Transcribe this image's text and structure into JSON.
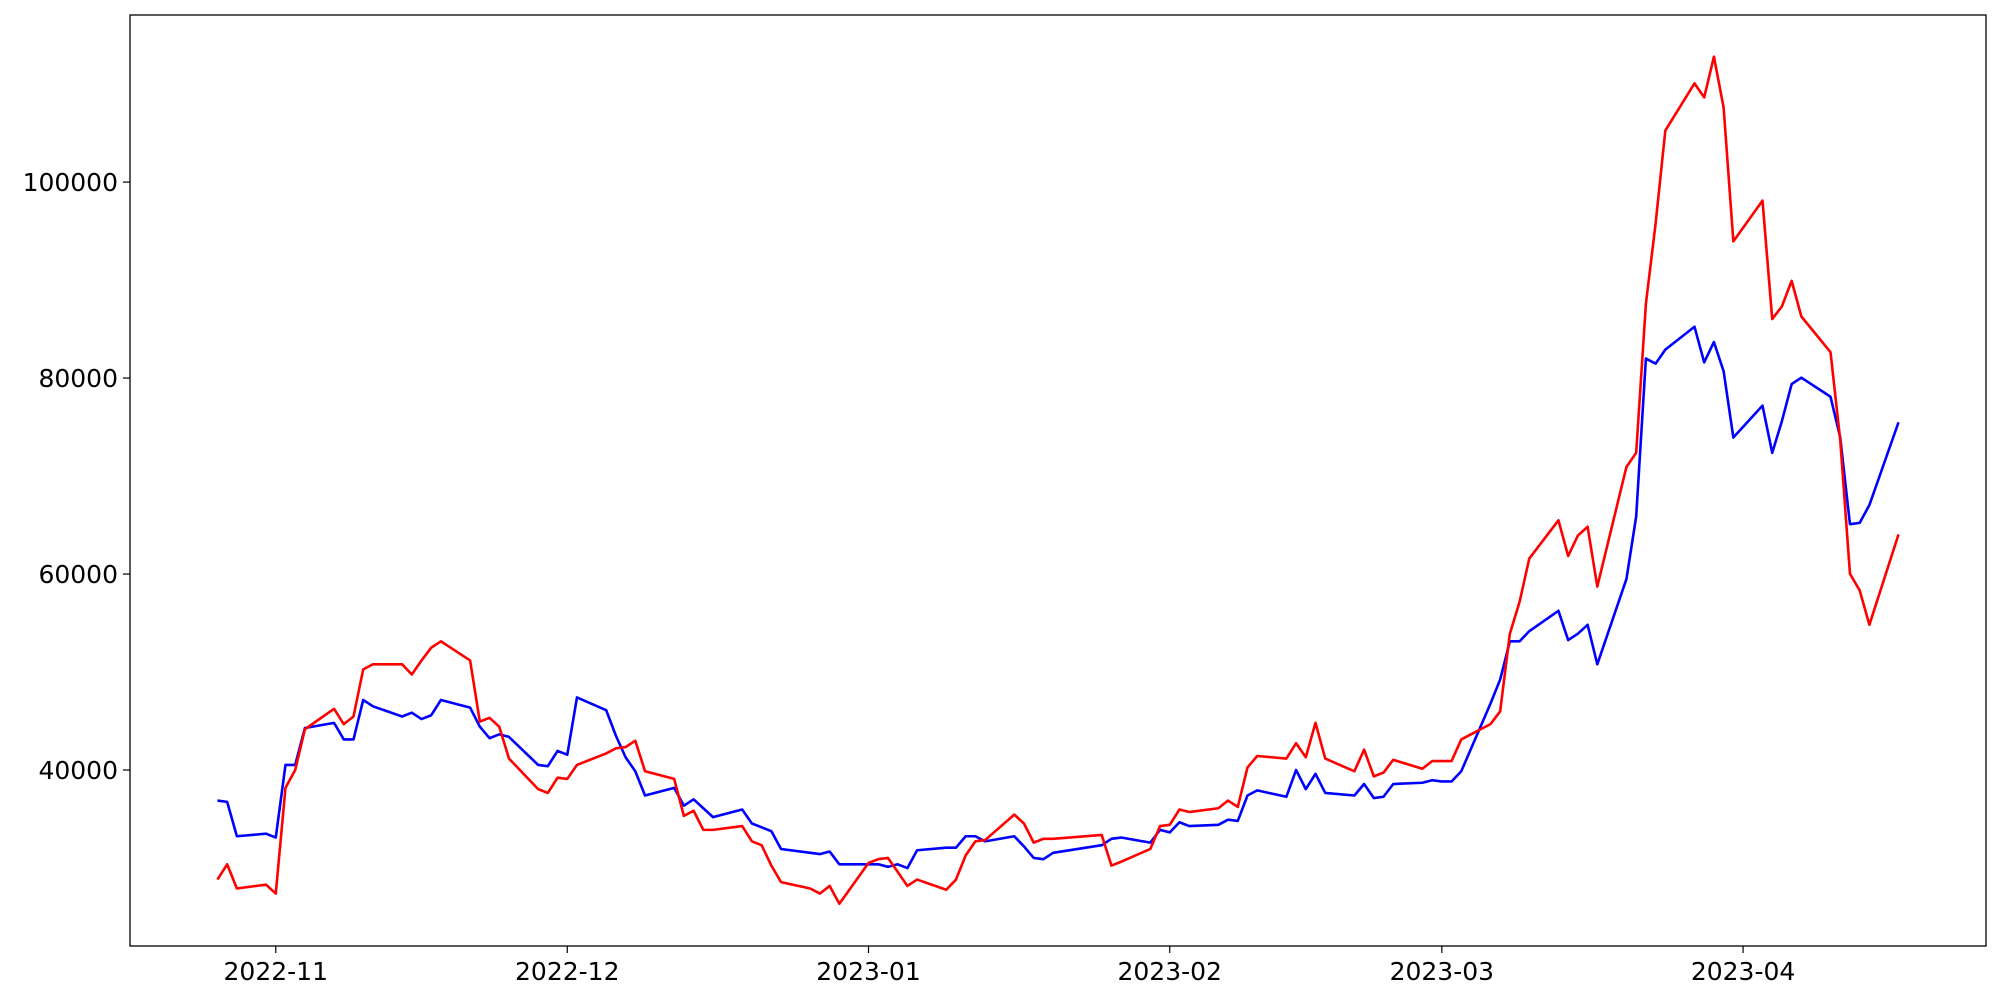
{
  "chart_data": {
    "type": "line",
    "x": [
      "2022-10-26",
      "2022-10-27",
      "2022-10-28",
      "2022-10-31",
      "2022-11-01",
      "2022-11-02",
      "2022-11-03",
      "2022-11-04",
      "2022-11-07",
      "2022-11-08",
      "2022-11-09",
      "2022-11-10",
      "2022-11-11",
      "2022-11-14",
      "2022-11-15",
      "2022-11-16",
      "2022-11-17",
      "2022-11-18",
      "2022-11-21",
      "2022-11-22",
      "2022-11-23",
      "2022-11-24",
      "2022-11-25",
      "2022-11-28",
      "2022-11-29",
      "2022-11-30",
      "2022-12-01",
      "2022-12-02",
      "2022-12-05",
      "2022-12-06",
      "2022-12-07",
      "2022-12-08",
      "2022-12-09",
      "2022-12-12",
      "2022-12-13",
      "2022-12-14",
      "2022-12-15",
      "2022-12-16",
      "2022-12-19",
      "2022-12-20",
      "2022-12-21",
      "2022-12-22",
      "2022-12-23",
      "2022-12-26",
      "2022-12-27",
      "2022-12-28",
      "2022-12-29",
      "2023-01-01",
      "2023-01-02",
      "2023-01-03",
      "2023-01-04",
      "2023-01-05",
      "2023-01-06",
      "2023-01-09",
      "2023-01-10",
      "2023-01-11",
      "2023-01-12",
      "2023-01-13",
      "2023-01-16",
      "2023-01-17",
      "2023-01-18",
      "2023-01-19",
      "2023-01-20",
      "2023-01-25",
      "2023-01-26",
      "2023-01-27",
      "2023-01-30",
      "2023-01-31",
      "2023-02-01",
      "2023-02-02",
      "2023-02-03",
      "2023-02-06",
      "2023-02-07",
      "2023-02-08",
      "2023-02-09",
      "2023-02-10",
      "2023-02-13",
      "2023-02-14",
      "2023-02-15",
      "2023-02-16",
      "2023-02-17",
      "2023-02-20",
      "2023-02-21",
      "2023-02-22",
      "2023-02-23",
      "2023-02-24",
      "2023-02-27",
      "2023-02-28",
      "2023-03-01",
      "2023-03-02",
      "2023-03-03",
      "2023-03-06",
      "2023-03-07",
      "2023-03-08",
      "2023-03-09",
      "2023-03-10",
      "2023-03-13",
      "2023-03-14",
      "2023-03-15",
      "2023-03-16",
      "2023-03-17",
      "2023-03-20",
      "2023-03-21",
      "2023-03-22",
      "2023-03-23",
      "2023-03-24",
      "2023-03-27",
      "2023-03-28",
      "2023-03-29",
      "2023-03-30",
      "2023-03-31",
      "2023-04-03",
      "2023-04-04",
      "2023-04-05",
      "2023-04-06",
      "2023-04-07",
      "2023-04-10",
      "2023-04-11",
      "2023-04-12",
      "2023-04-13",
      "2023-04-14",
      "2023-04-17"
    ],
    "series": [
      {
        "color": "#0000ff",
        "values": [
          36880,
          36750,
          33240,
          33500,
          33110,
          40520,
          40520,
          44290,
          44810,
          43120,
          43120,
          47150,
          46500,
          45460,
          45850,
          45200,
          45590,
          47150,
          46370,
          44420,
          43250,
          43640,
          43380,
          40520,
          40390,
          41950,
          41560,
          47410,
          46110,
          43510,
          41300,
          39870,
          37400,
          38180,
          36360,
          37010,
          36100,
          35190,
          35970,
          34540,
          34150,
          33760,
          31940,
          31550,
          31420,
          31680,
          30380,
          30380,
          30380,
          30120,
          30380,
          29990,
          31810,
          32070,
          32070,
          33240,
          33240,
          32720,
          33240,
          32200,
          31030,
          30900,
          31550,
          32330,
          32980,
          33110,
          32590,
          33890,
          33630,
          34670,
          34280,
          34410,
          34930,
          34800,
          37400,
          37920,
          37270,
          40000,
          38050,
          39610,
          37660,
          37400,
          38570,
          37140,
          37270,
          38570,
          38700,
          38960,
          38830,
          38830,
          39870,
          46760,
          49230,
          53130,
          53130,
          54170,
          56250,
          53260,
          53910,
          54820,
          50790,
          59500,
          65870,
          81990,
          81470,
          82900,
          85240,
          81600,
          83680,
          80690,
          73930,
          77180,
          72370,
          75620,
          79390,
          80040,
          78090,
          73930,
          65090,
          65220,
          67040,
          75490
        ]
      },
      {
        "color": "#ff0000",
        "values": [
          28820,
          30380,
          27910,
          28300,
          27390,
          38180,
          40000,
          44160,
          46240,
          44680,
          45460,
          50270,
          50790,
          50790,
          49750,
          51180,
          52480,
          53130,
          51180,
          44940,
          45330,
          44420,
          41170,
          38050,
          37660,
          39220,
          39090,
          40520,
          41690,
          42210,
          42340,
          42990,
          39870,
          39090,
          35320,
          35840,
          33890,
          33890,
          34280,
          32720,
          32330,
          30250,
          28560,
          27910,
          27390,
          28170,
          26350,
          30510,
          30900,
          31030,
          29600,
          28170,
          28820,
          27780,
          28820,
          31290,
          32720,
          32850,
          35450,
          34540,
          32590,
          32980,
          32980,
          33370,
          30250,
          30640,
          31940,
          34280,
          34410,
          35970,
          35710,
          36100,
          36880,
          36230,
          40260,
          41430,
          41170,
          42730,
          41300,
          44810,
          41170,
          39870,
          42080,
          39350,
          39740,
          41040,
          40130,
          40910,
          40910,
          40910,
          43120,
          44680,
          45980,
          53910,
          57160,
          61580,
          65480,
          61840,
          63920,
          64830,
          58720,
          70940,
          72370,
          87580,
          95770,
          105260,
          110070,
          108640,
          112800,
          107600,
          93950,
          98110,
          86020,
          87320,
          89920,
          86280,
          82640,
          73670,
          60020,
          58330,
          54820,
          64050
        ]
      }
    ],
    "xlim": [
      "2022-10-17",
      "2023-04-26"
    ],
    "xticks": [
      {
        "value": "2022-11-01",
        "label": "2022-11"
      },
      {
        "value": "2022-12-01",
        "label": "2022-12"
      },
      {
        "value": "2023-01-01",
        "label": "2023-01"
      },
      {
        "value": "2023-02-01",
        "label": "2023-02"
      },
      {
        "value": "2023-03-01",
        "label": "2023-03"
      },
      {
        "value": "2023-04-01",
        "label": "2023-04"
      }
    ],
    "ylim": [
      22040,
      117050
    ],
    "yticks": [
      40000,
      60000,
      80000,
      100000
    ],
    "grid": false
  }
}
